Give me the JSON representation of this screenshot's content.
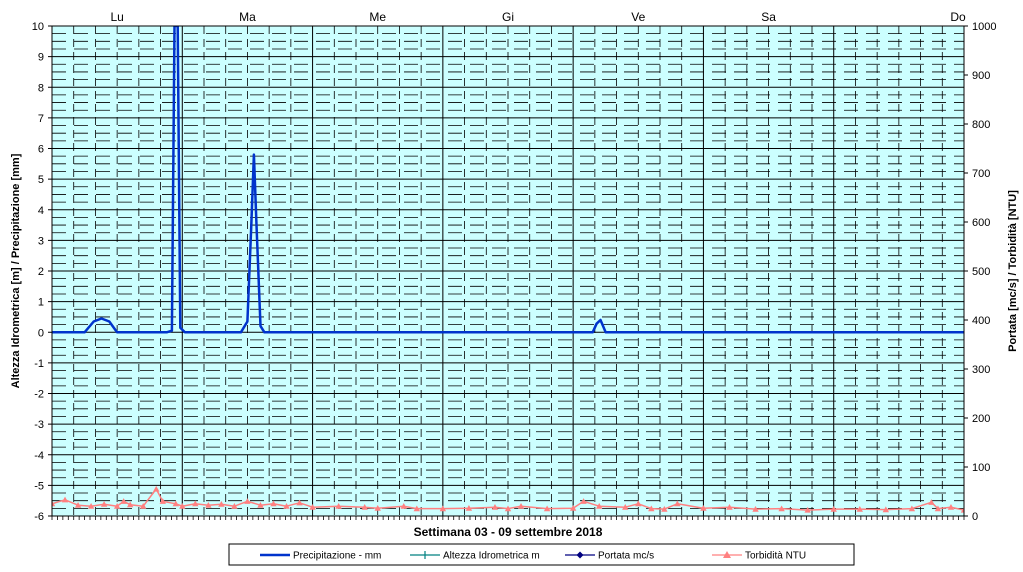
{
  "chart_data": {
    "type": "line",
    "xlabel": "Settimana  03 - 09 settembre 2018",
    "ylabel_left": "Altezza Idrometrica [m] / Precipitazione [mm]",
    "ylabel_right": "Portata [mc/s] / Torbidità [NTU]",
    "ylim_left": [
      -6,
      10
    ],
    "ylim_right": [
      0,
      1000
    ],
    "left_ticks": [
      "10",
      "9",
      "8",
      "7",
      "6",
      "5",
      "4",
      "3",
      "2",
      "1",
      "0",
      "-1",
      "-2",
      "-3",
      "-4",
      "-5",
      "-6"
    ],
    "right_ticks": [
      "1000",
      "900",
      "800",
      "700",
      "600",
      "500",
      "400",
      "300",
      "200",
      "100",
      "0"
    ],
    "days": [
      "Lu",
      "Ma",
      "Me",
      "Gi",
      "Ve",
      "Sa",
      "Do"
    ],
    "x_unit": "days since start of week (0 = Lu 00:00, 7 = end of Do)",
    "grid": true,
    "legend_position": "bottom",
    "series": [
      {
        "name": "Precipitazione - mm",
        "axis": "left",
        "color": "#0033cc",
        "marker": "none",
        "points": [
          [
            0,
            0
          ],
          [
            0.25,
            0
          ],
          [
            0.32,
            0.35
          ],
          [
            0.38,
            0.45
          ],
          [
            0.44,
            0.35
          ],
          [
            0.5,
            0
          ],
          [
            0.88,
            0
          ],
          [
            0.92,
            0.05
          ],
          [
            0.94,
            10
          ],
          [
            0.965,
            10
          ],
          [
            0.985,
            0.15
          ],
          [
            1.02,
            0
          ],
          [
            1.45,
            0
          ],
          [
            1.5,
            0.35
          ],
          [
            1.53,
            3.5
          ],
          [
            1.55,
            5.8
          ],
          [
            1.57,
            3.5
          ],
          [
            1.6,
            0.2
          ],
          [
            1.63,
            0
          ],
          [
            4.15,
            0
          ],
          [
            4.18,
            0.28
          ],
          [
            4.21,
            0.4
          ],
          [
            4.25,
            0
          ],
          [
            7,
            0
          ]
        ]
      },
      {
        "name": "Altezza Idrometrica m",
        "axis": "left",
        "color": "#008080",
        "marker": "plus",
        "points": []
      },
      {
        "name": "Portata mc/s",
        "axis": "right",
        "color": "#000080",
        "marker": "diamond",
        "points": []
      },
      {
        "name": "Torbidità NTU",
        "axis": "right",
        "color": "#ff8080",
        "marker": "triangle",
        "points": [
          [
            0,
            25
          ],
          [
            0.1,
            33
          ],
          [
            0.2,
            22
          ],
          [
            0.3,
            20
          ],
          [
            0.4,
            24
          ],
          [
            0.5,
            20
          ],
          [
            0.55,
            30
          ],
          [
            0.6,
            23
          ],
          [
            0.7,
            20
          ],
          [
            0.8,
            55
          ],
          [
            0.85,
            30
          ],
          [
            0.95,
            25
          ],
          [
            1.0,
            20
          ],
          [
            1.1,
            25
          ],
          [
            1.2,
            22
          ],
          [
            1.3,
            24
          ],
          [
            1.4,
            20
          ],
          [
            1.5,
            30
          ],
          [
            1.6,
            22
          ],
          [
            1.7,
            25
          ],
          [
            1.8,
            20
          ],
          [
            1.9,
            27
          ],
          [
            2.0,
            18
          ],
          [
            2.2,
            20
          ],
          [
            2.4,
            18
          ],
          [
            2.5,
            16
          ],
          [
            2.7,
            20
          ],
          [
            2.8,
            15
          ],
          [
            3.0,
            15
          ],
          [
            3.2,
            16
          ],
          [
            3.4,
            18
          ],
          [
            3.5,
            15
          ],
          [
            3.6,
            20
          ],
          [
            3.8,
            15
          ],
          [
            4.0,
            16
          ],
          [
            4.08,
            30
          ],
          [
            4.2,
            20
          ],
          [
            4.4,
            18
          ],
          [
            4.5,
            25
          ],
          [
            4.6,
            15
          ],
          [
            4.7,
            14
          ],
          [
            4.8,
            25
          ],
          [
            5.0,
            16
          ],
          [
            5.2,
            18
          ],
          [
            5.4,
            14
          ],
          [
            5.6,
            15
          ],
          [
            5.8,
            12
          ],
          [
            6.0,
            14
          ],
          [
            6.2,
            14
          ],
          [
            6.4,
            13
          ],
          [
            6.6,
            15
          ],
          [
            6.75,
            28
          ],
          [
            6.8,
            15
          ],
          [
            6.9,
            18
          ],
          [
            7.0,
            12
          ]
        ]
      }
    ]
  }
}
